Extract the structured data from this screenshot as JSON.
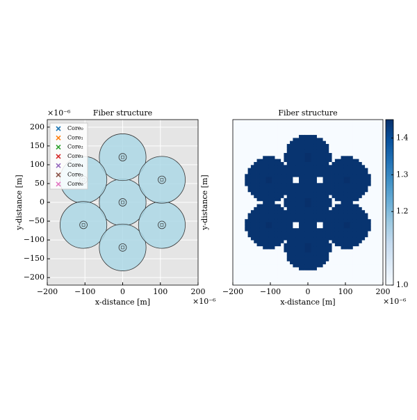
{
  "chart_data": [
    {
      "type": "fiber",
      "title": "Fiber structure",
      "x_label": "x-distance [m]",
      "y_label": "y-distance [m]",
      "x_offset": "×10⁻⁶",
      "y_offset": "×10⁻⁶",
      "xlim": [
        -200,
        200
      ],
      "ylim": [
        -220,
        220
      ],
      "xticks": [
        {
          "value": -200,
          "label": "−200"
        },
        {
          "value": -100,
          "label": "−100"
        },
        0,
        100,
        200
      ],
      "yticks": [
        {
          "value": -200,
          "label": "−200"
        },
        {
          "value": -150,
          "label": "−150"
        },
        {
          "value": -100,
          "label": "−100"
        },
        {
          "value": -50,
          "label": "−50"
        },
        0,
        50,
        100,
        150,
        200
      ],
      "grid": true,
      "cladding_radius": 62,
      "core_radius": 10,
      "series": [
        {
          "name": "Core₀",
          "color": "#1f77b4",
          "x": [
            0
          ],
          "values": [
            0
          ]
        },
        {
          "name": "Core₁",
          "color": "#ff7f0e",
          "x": [
            0
          ],
          "values": [
            120
          ]
        },
        {
          "name": "Core₂",
          "color": "#2ca02c",
          "x": [
            -104
          ],
          "values": [
            60
          ]
        },
        {
          "name": "Core₃",
          "color": "#d62728",
          "x": [
            -104
          ],
          "values": [
            -60
          ]
        },
        {
          "name": "Core₄",
          "color": "#9467bd",
          "x": [
            0
          ],
          "values": [
            -120
          ]
        },
        {
          "name": "Core₅",
          "color": "#8c564b",
          "x": [
            104
          ],
          "values": [
            -60
          ]
        },
        {
          "name": "Core₆",
          "color": "#e377c2",
          "x": [
            104
          ],
          "values": [
            60
          ]
        }
      ]
    },
    {
      "type": "heatmap",
      "title": "Fiber structure",
      "x_label": "x-distance [m]",
      "y_label": "y-distance [m]",
      "x_offset": "×10⁻⁶",
      "xlim": [
        -200,
        200
      ],
      "ylim": [
        -220,
        220
      ],
      "xticks": [
        {
          "value": -200,
          "label": "−200"
        },
        {
          "value": -100,
          "label": "−100"
        },
        0,
        100,
        200
      ],
      "background_index": 1.0,
      "cladding_index": 1.444,
      "core_index": 1.45,
      "colorbar": {
        "cmap": "Blues",
        "clim": [
          1.0,
          1.45
        ],
        "ticks": [
          {
            "value": 1,
            "label": "1.0"
          },
          1.2,
          1.3,
          1.4
        ]
      }
    }
  ]
}
